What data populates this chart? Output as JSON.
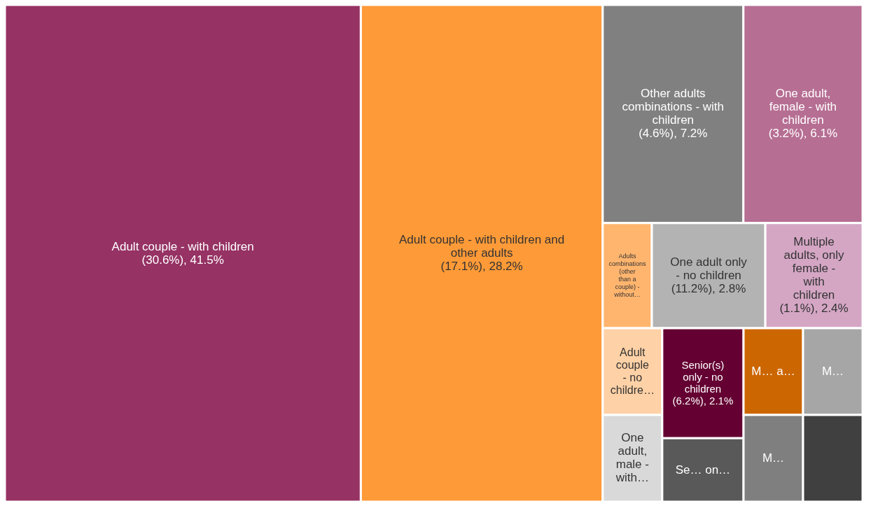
{
  "chart_data": {
    "type": "other",
    "categories": [
      "Adult couple - with children",
      "Adult couple - with children and other adults",
      "Other adults combinations - with children",
      "One adult, female - with children",
      "Adults combinations (other than a couple) - without…",
      "One adult only - no children",
      "Multiple adults, only female - with children",
      "Adult couple - no childre…",
      "One adult, male - with…",
      "Senior(s) only - no children",
      "Se… on…",
      "M… a…",
      "M…",
      "M…",
      null
    ],
    "values": [
      41.5,
      28.2,
      7.2,
      6.1,
      null,
      2.8,
      2.4,
      null,
      null,
      2.1,
      null,
      null,
      null,
      null,
      null
    ],
    "value_labels": [
      "(30.6%), 41.5%",
      "(17.1%), 28.2%",
      "(4.6%), 7.2%",
      "(3.2%), 6.1%",
      null,
      "(11.2%), 2.8%",
      "(1.1%), 2.4%",
      null,
      null,
      "(6.2%), 2.1%",
      null,
      null,
      null,
      null,
      null
    ],
    "colors": [
      "#963264",
      "#fe9a37",
      "#808080",
      "#b66e93",
      "#ffb56e",
      "#b3b3b3",
      "#d4a6c4",
      "#ffd1a6",
      "#d9d9d9",
      "#640032",
      "#595959",
      "#cc6600",
      "#a6a6a6",
      "#7f7f7f",
      "#404040"
    ]
  }
}
